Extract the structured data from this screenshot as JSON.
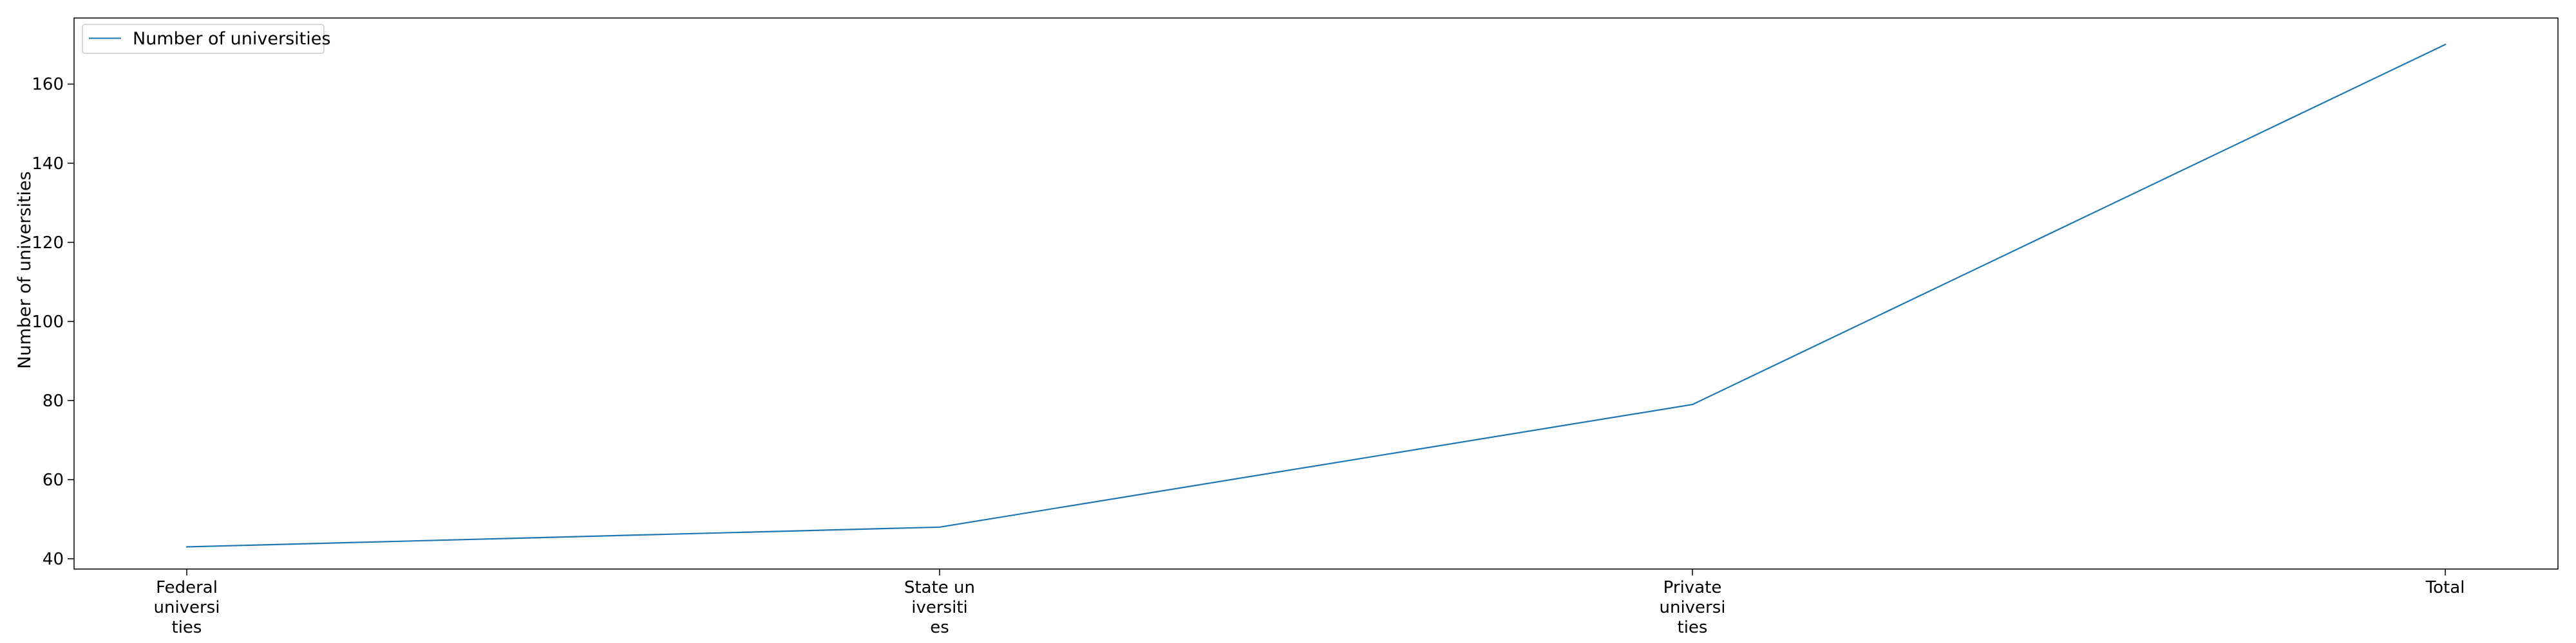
{
  "chart_data": {
    "type": "line",
    "categories": [
      [
        "Federal",
        "universi",
        "ties"
      ],
      [
        "State un",
        "iversiti",
        "es"
      ],
      [
        "Private",
        "universi",
        "ties"
      ],
      [
        "Total"
      ]
    ],
    "series": [
      {
        "name": "Number of universities",
        "values": [
          43,
          48,
          79,
          170
        ],
        "color": "#1f77b4"
      }
    ],
    "xlabel": "",
    "ylabel": "Number of universities",
    "ylim": [
      37.4,
      176.7
    ],
    "yticks": [
      40,
      60,
      80,
      100,
      120,
      140,
      160
    ],
    "grid": false,
    "legend_position": "top-left"
  }
}
